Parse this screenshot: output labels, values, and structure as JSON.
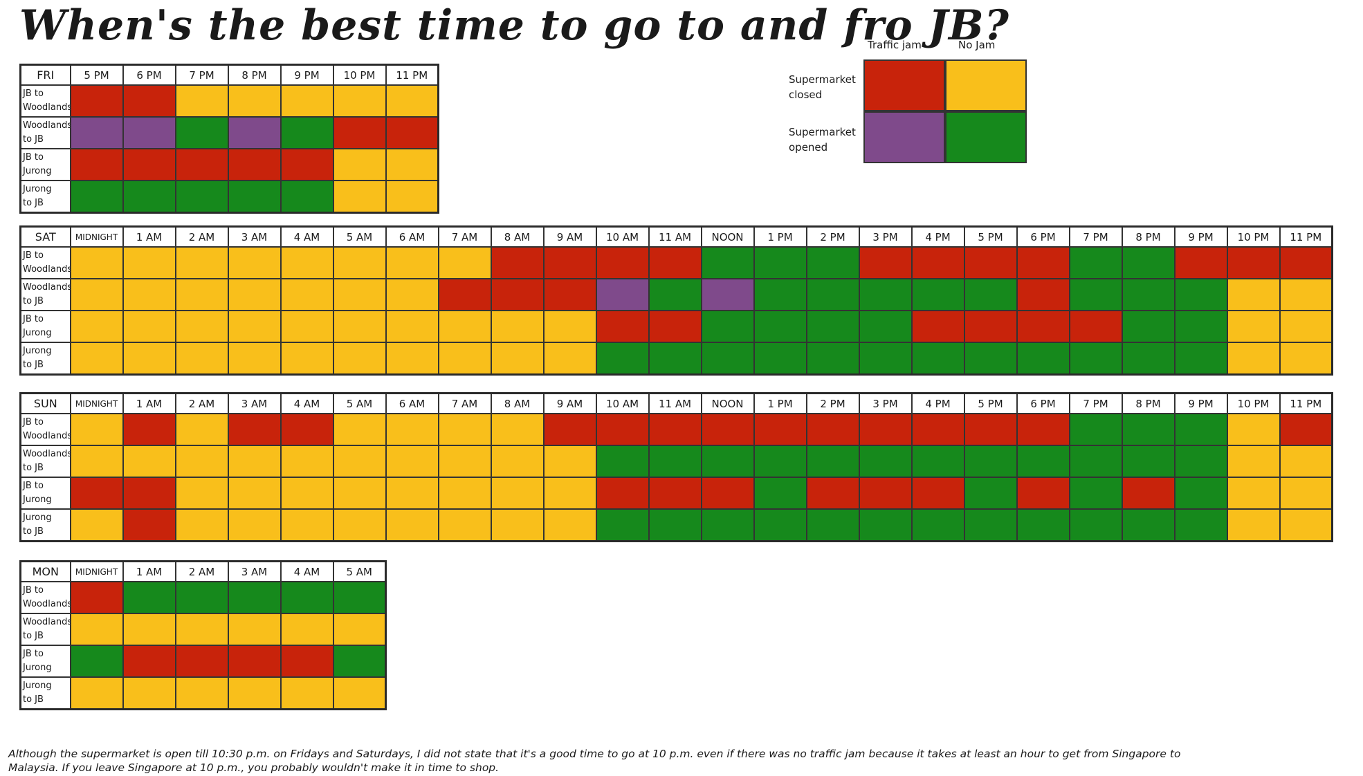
{
  "title": "When's the best time to go to and fro JB?",
  "colors": {
    "closed_jam": "#c8230b",
    "closed_nojam": "#f9bf1b",
    "open_jam": "#7f4a8b",
    "open_nojam": "#16891c"
  },
  "legend": {
    "col_heads": [
      "Traffic jam",
      "No Jam"
    ],
    "row_heads": [
      "Supermarket\nclosed",
      "Supermarket\nopened"
    ]
  },
  "note": "Although the supermarket is open till 10:30 p.m. on Fridays and Saturdays, I did not state that it's a good time to go at 10 p.m. even if there was no traffic jam because it takes at least an hour to get from Singapore to Malaysia. If you leave Singapore at 10 p.m., you probably wouldn't make it in time to shop.",
  "chart_data": {
    "type": "heatmap",
    "routes": [
      "JB to\nWoodlands",
      "Woodlands\nto JB",
      "JB to\nJurong",
      "Jurong\nto JB"
    ],
    "codes": {
      "R": "Supermarket closed / Traffic jam",
      "Y": "Supermarket closed / No Jam",
      "P": "Supermarket opened / Traffic jam",
      "G": "Supermarket opened / No Jam"
    },
    "days": [
      {
        "day": "FRI",
        "hours": [
          "5 PM",
          "6 PM",
          "7 PM",
          "8 PM",
          "9 PM",
          "10 PM",
          "11 PM"
        ],
        "rows": [
          [
            "R",
            "R",
            "Y",
            "Y",
            "Y",
            "Y",
            "Y"
          ],
          [
            "P",
            "P",
            "G",
            "P",
            "G",
            "R",
            "R"
          ],
          [
            "R",
            "R",
            "R",
            "R",
            "R",
            "Y",
            "Y"
          ],
          [
            "G",
            "G",
            "G",
            "G",
            "G",
            "Y",
            "Y"
          ]
        ]
      },
      {
        "day": "SAT",
        "hours": [
          "MIDNIGHT",
          "1 AM",
          "2 AM",
          "3 AM",
          "4 AM",
          "5 AM",
          "6 AM",
          "7 AM",
          "8 AM",
          "9 AM",
          "10 AM",
          "11 AM",
          "NOON",
          "1 PM",
          "2 PM",
          "3 PM",
          "4 PM",
          "5 PM",
          "6 PM",
          "7 PM",
          "8 PM",
          "9 PM",
          "10 PM",
          "11 PM"
        ],
        "rows": [
          [
            "Y",
            "Y",
            "Y",
            "Y",
            "Y",
            "Y",
            "Y",
            "Y",
            "R",
            "R",
            "R",
            "R",
            "G",
            "G",
            "G",
            "R",
            "R",
            "R",
            "R",
            "G",
            "G",
            "R",
            "R",
            "R"
          ],
          [
            "Y",
            "Y",
            "Y",
            "Y",
            "Y",
            "Y",
            "Y",
            "R",
            "R",
            "R",
            "P",
            "G",
            "P",
            "G",
            "G",
            "G",
            "G",
            "G",
            "R",
            "G",
            "G",
            "G",
            "Y",
            "Y"
          ],
          [
            "Y",
            "Y",
            "Y",
            "Y",
            "Y",
            "Y",
            "Y",
            "Y",
            "Y",
            "Y",
            "R",
            "R",
            "G",
            "G",
            "G",
            "G",
            "R",
            "R",
            "R",
            "R",
            "G",
            "G",
            "Y",
            "Y"
          ],
          [
            "Y",
            "Y",
            "Y",
            "Y",
            "Y",
            "Y",
            "Y",
            "Y",
            "Y",
            "Y",
            "G",
            "G",
            "G",
            "G",
            "G",
            "G",
            "G",
            "G",
            "G",
            "G",
            "G",
            "G",
            "Y",
            "Y"
          ]
        ]
      },
      {
        "day": "SUN",
        "hours": [
          "MIDNIGHT",
          "1 AM",
          "2 AM",
          "3 AM",
          "4 AM",
          "5 AM",
          "6 AM",
          "7 AM",
          "8 AM",
          "9 AM",
          "10 AM",
          "11 AM",
          "NOON",
          "1 PM",
          "2 PM",
          "3 PM",
          "4 PM",
          "5 PM",
          "6 PM",
          "7 PM",
          "8 PM",
          "9 PM",
          "10 PM",
          "11 PM"
        ],
        "rows": [
          [
            "Y",
            "R",
            "Y",
            "R",
            "R",
            "Y",
            "Y",
            "Y",
            "Y",
            "R",
            "R",
            "R",
            "R",
            "R",
            "R",
            "R",
            "R",
            "R",
            "R",
            "G",
            "G",
            "G",
            "Y",
            "R"
          ],
          [
            "Y",
            "Y",
            "Y",
            "Y",
            "Y",
            "Y",
            "Y",
            "Y",
            "Y",
            "Y",
            "G",
            "G",
            "G",
            "G",
            "G",
            "G",
            "G",
            "G",
            "G",
            "G",
            "G",
            "G",
            "Y",
            "Y"
          ],
          [
            "R",
            "R",
            "Y",
            "Y",
            "Y",
            "Y",
            "Y",
            "Y",
            "Y",
            "Y",
            "R",
            "R",
            "R",
            "G",
            "R",
            "R",
            "R",
            "G",
            "R",
            "G",
            "R",
            "G",
            "Y",
            "Y"
          ],
          [
            "Y",
            "R",
            "Y",
            "Y",
            "Y",
            "Y",
            "Y",
            "Y",
            "Y",
            "Y",
            "G",
            "G",
            "G",
            "G",
            "G",
            "G",
            "G",
            "G",
            "G",
            "G",
            "G",
            "G",
            "Y",
            "Y"
          ]
        ]
      },
      {
        "day": "MON",
        "hours": [
          "MIDNIGHT",
          "1 AM",
          "2 AM",
          "3 AM",
          "4 AM",
          "5 AM"
        ],
        "rows": [
          [
            "R",
            "G",
            "G",
            "G",
            "G",
            "G"
          ],
          [
            "Y",
            "Y",
            "Y",
            "Y",
            "Y",
            "Y"
          ],
          [
            "G",
            "R",
            "R",
            "R",
            "R",
            "G"
          ],
          [
            "Y",
            "Y",
            "Y",
            "Y",
            "Y",
            "Y"
          ]
        ]
      }
    ]
  }
}
